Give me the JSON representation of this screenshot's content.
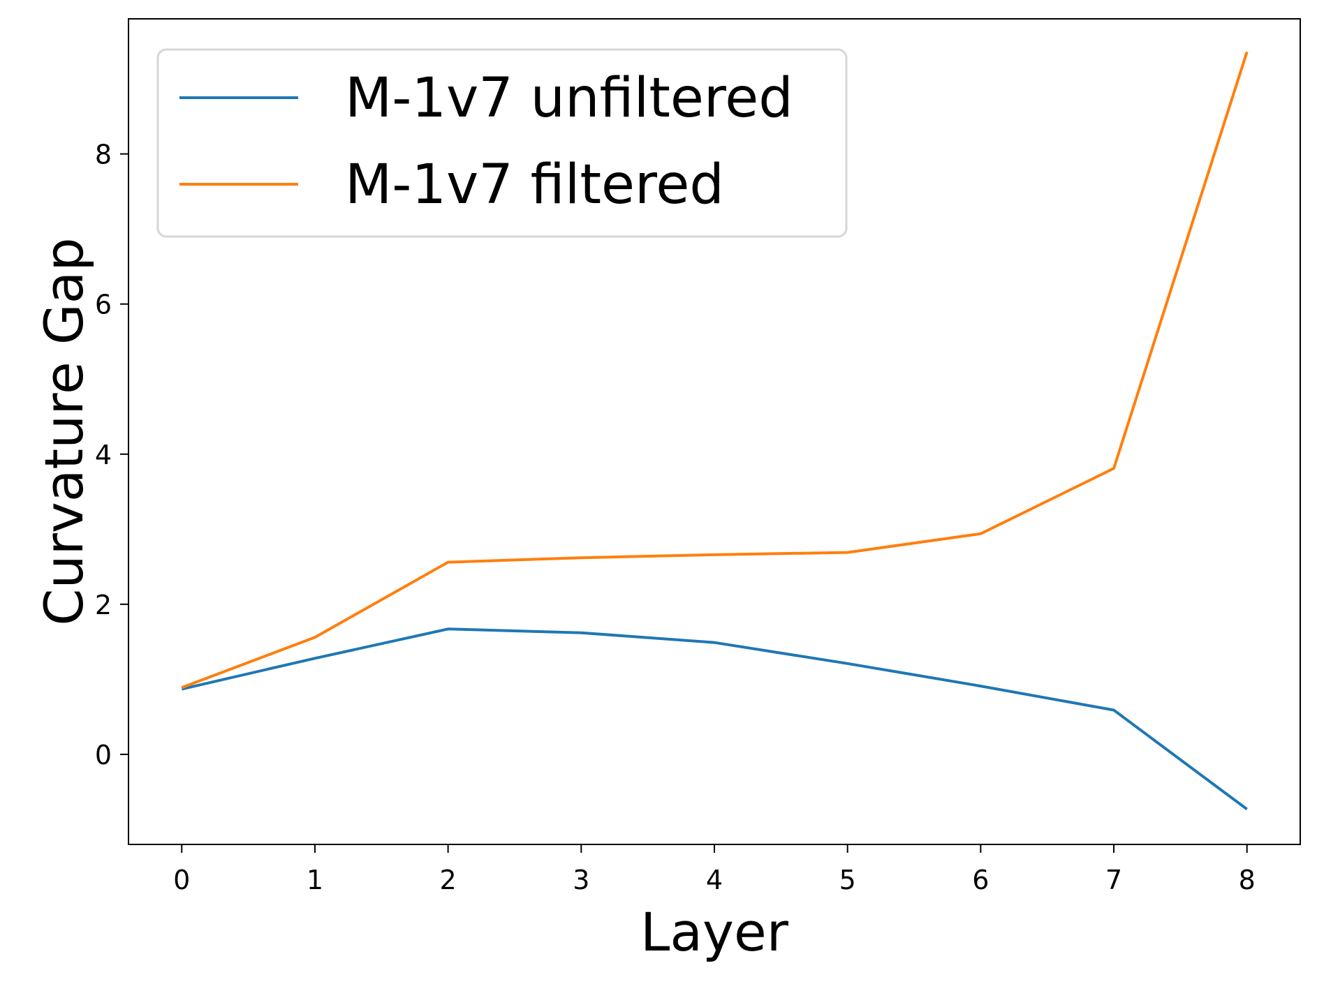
{
  "chart_data": {
    "type": "line",
    "title": "",
    "xlabel": "Layer",
    "ylabel": "Curvature Gap",
    "x": [
      0,
      1,
      2,
      3,
      4,
      5,
      6,
      7,
      8
    ],
    "xlim": [
      -0.4,
      8.4
    ],
    "ylim": [
      -1.2,
      9.8
    ],
    "xticks": [
      0,
      1,
      2,
      3,
      4,
      5,
      6,
      7,
      8
    ],
    "yticks": [
      0,
      2,
      4,
      6,
      8
    ],
    "grid": false,
    "legend": "upper-left",
    "series": [
      {
        "name": "M-1v7 unfiltered",
        "color": "#1f77b4",
        "values": [
          0.87,
          1.28,
          1.67,
          1.62,
          1.49,
          1.21,
          0.91,
          0.59,
          -0.73
        ]
      },
      {
        "name": "M-1v7 filtered",
        "color": "#ff7f0e",
        "values": [
          0.89,
          1.56,
          2.56,
          2.62,
          2.66,
          2.69,
          2.94,
          3.81,
          9.36
        ]
      }
    ]
  }
}
